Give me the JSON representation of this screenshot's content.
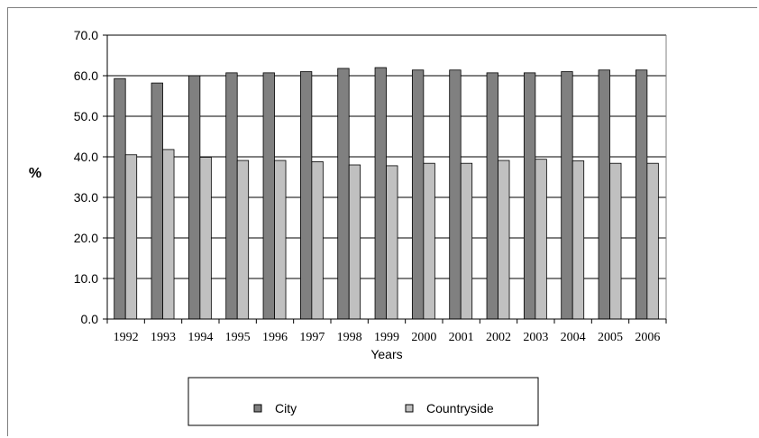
{
  "chart_data": {
    "type": "bar",
    "categories": [
      "1992",
      "1993",
      "1994",
      "1995",
      "1996",
      "1997",
      "1998",
      "1999",
      "2000",
      "2001",
      "2002",
      "2003",
      "2004",
      "2005",
      "2006"
    ],
    "series": [
      {
        "name": "City",
        "color": "#808080",
        "values": [
          59.3,
          58.2,
          60.0,
          60.7,
          60.7,
          61.0,
          61.8,
          62.0,
          61.4,
          61.4,
          60.7,
          60.7,
          61.0,
          61.4,
          61.4
        ]
      },
      {
        "name": "Countryside",
        "color": "#c0c0c0",
        "values": [
          40.5,
          41.8,
          39.9,
          39.1,
          39.1,
          38.8,
          38.0,
          37.8,
          38.4,
          38.4,
          39.1,
          39.4,
          39.0,
          38.4,
          38.4
        ]
      }
    ],
    "xlabel": "Years",
    "ylabel": "%",
    "ylim": [
      0,
      70
    ],
    "yticks": [
      0,
      10,
      20,
      30,
      40,
      50,
      60,
      70
    ],
    "ytick_format": "0.0",
    "grid": true,
    "legend_position": "bottom"
  }
}
